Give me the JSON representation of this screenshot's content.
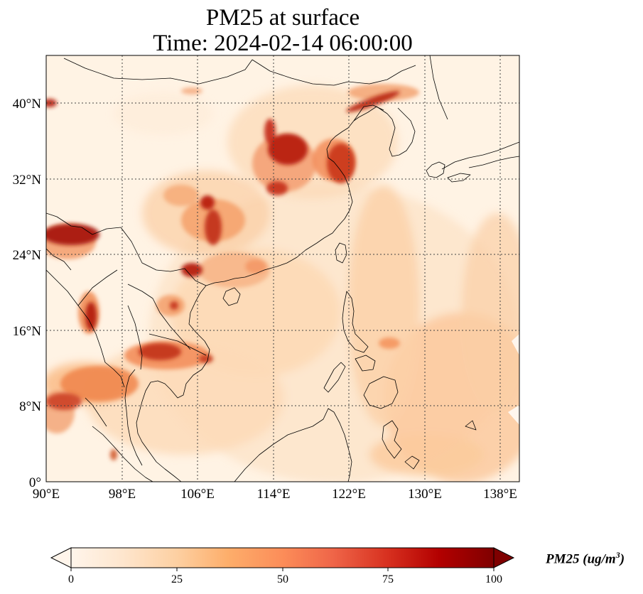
{
  "title": {
    "line1": "PM25 at surface",
    "line2": "Time: 2024-02-14 06:00:00"
  },
  "axes": {
    "lon_ticks": [
      "90°E",
      "98°E",
      "106°E",
      "114°E",
      "122°E",
      "130°E",
      "138°E"
    ],
    "lat_ticks": [
      "40°N",
      "32°N",
      "24°N",
      "16°N",
      "8°N",
      "0°"
    ],
    "gridlines": "dotted"
  },
  "colorbar": {
    "units_label": "PM25 (ug/m",
    "units_superscript": "3",
    "units_close": ")",
    "tick_labels": [
      "0",
      "25",
      "50",
      "75",
      "100"
    ],
    "colormap": [
      "#fff5eb",
      "#fee6ce",
      "#fdd0a2",
      "#fdae6b",
      "#fd8d3c",
      "#f16913",
      "#d94801",
      "#a63603",
      "#7f2704"
    ],
    "extend": "both"
  },
  "map": {
    "lon_range": [
      90,
      140
    ],
    "lat_range": [
      0,
      44
    ],
    "field_colors": {
      "background": "#fff3e4",
      "light": "#fde3c6",
      "medium": "#fbc08e",
      "high": "#f07d45",
      "very_high": "#b51c0c",
      "extreme": "#7e0504"
    }
  }
}
